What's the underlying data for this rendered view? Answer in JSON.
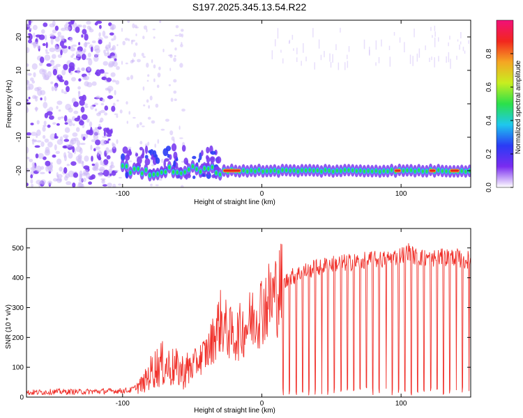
{
  "title": "S197.2025.345.13.54.R22",
  "colors": {
    "cloud": "#7b3cf0",
    "cloud_light": "#cdb9f7",
    "line": "#e8211f",
    "snr_line": "#f0302a",
    "axis": "#000000"
  },
  "chart_data": [
    {
      "type": "heatmap",
      "title": "S197.2025.345.13.54.R22",
      "xlabel": "Height of straight line (km)",
      "ylabel": "Frequency (Hz)",
      "xlim": [
        -169,
        150
      ],
      "ylim": [
        -25,
        25
      ],
      "xticks": [
        -100,
        0,
        100
      ],
      "xtick_labels": [
        "-100",
        "0",
        "100"
      ],
      "yticks": [
        20,
        10,
        0,
        -10,
        -20
      ],
      "ytick_labels": [
        "20",
        "10",
        "0",
        "-10",
        "-20"
      ],
      "colorbar": {
        "label": "Normalized spectral amplitude",
        "range": [
          0,
          1
        ],
        "ticks": [
          0.0,
          0.2,
          0.4,
          0.6,
          0.8
        ],
        "tick_labels": [
          "0.0",
          "0.2",
          "0.4",
          "0.6",
          "0.8"
        ],
        "colors": [
          "#ffffff",
          "#7a2cf0",
          "#2a3bf5",
          "#1ec8ee",
          "#2be04a",
          "#c8ee20",
          "#f5a623",
          "#f2261e",
          "#f21078"
        ]
      },
      "signal_track": {
        "frequency_hz": -20,
        "start_km": -100,
        "end_km": 150,
        "strong_segments_km": [
          [
            -28,
            -15
          ],
          [
            95,
            100
          ],
          [
            120,
            125
          ],
          [
            135,
            142
          ]
        ]
      }
    },
    {
      "type": "line",
      "xlabel": "Height of straight line (km)",
      "ylabel": "SNR (10 * v/v)",
      "xlim": [
        -169,
        150
      ],
      "ylim": [
        0,
        565
      ],
      "xticks": [
        -100,
        0,
        100
      ],
      "xtick_labels": [
        "-100",
        "0",
        "100"
      ],
      "yticks": [
        0,
        100,
        200,
        300,
        400,
        500
      ],
      "ytick_labels": [
        "0",
        "100",
        "200",
        "300",
        "400",
        "500"
      ],
      "series": [
        {
          "name": "SNR",
          "x": [
            -169,
            -150,
            -130,
            -110,
            -95,
            -85,
            -78,
            -72,
            -65,
            -55,
            -45,
            -38,
            -30,
            -25,
            -20,
            -10,
            0,
            8,
            15,
            20,
            30,
            40,
            50,
            60,
            70,
            80,
            90,
            100,
            105,
            110,
            120,
            130,
            140,
            145,
            150
          ],
          "y": [
            15,
            18,
            18,
            20,
            22,
            45,
            95,
            110,
            100,
            85,
            125,
            160,
            255,
            225,
            200,
            245,
            300,
            335,
            375,
            400,
            420,
            435,
            445,
            450,
            455,
            460,
            462,
            475,
            490,
            470,
            465,
            468,
            470,
            455,
            465
          ]
        }
      ]
    }
  ]
}
